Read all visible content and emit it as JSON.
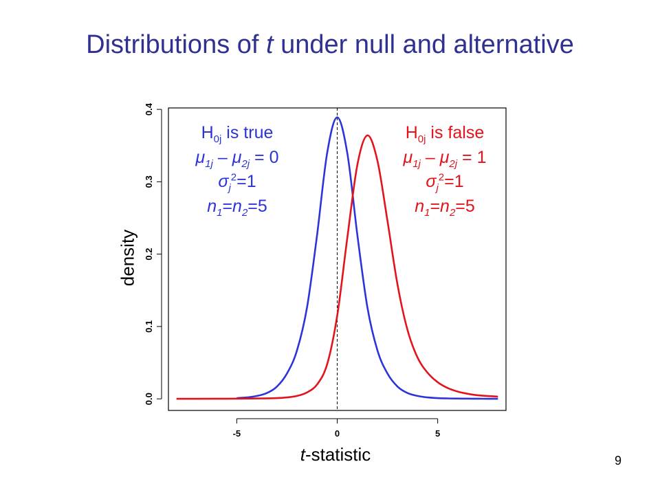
{
  "slide": {
    "title_pre": "Distributions of ",
    "title_var": "t",
    "title_post": " under null and alternative",
    "page_number": "9"
  },
  "colors": {
    "title": "#2e3192",
    "null_curve": "#2b34d9",
    "alt_curve": "#e3131b",
    "axis": "#000000"
  },
  "annotations": {
    "null": {
      "line1_pre": "H",
      "line1_sub": "0j",
      "line1_post": " is true",
      "line2": {
        "a": "μ",
        "a_sub": "1j",
        "mid": " – ",
        "b": "μ",
        "b_sub": "2j",
        "tail": " = 0"
      },
      "line3": {
        "s": "σ",
        "s_sub": "j",
        "s_sup": "2",
        "tail": "=1"
      },
      "line4": {
        "a": "n",
        "a_sub": "1",
        "mid": "=",
        "b": "n",
        "b_sub": "2",
        "tail": "=5"
      }
    },
    "alt": {
      "line1_pre": "H",
      "line1_sub": "0j",
      "line1_post": " is false",
      "line2": {
        "a": "μ",
        "a_sub": "1j",
        "mid": " – ",
        "b": "μ",
        "b_sub": "2j",
        "tail": " = 1"
      },
      "line3": {
        "s": "σ",
        "s_sub": "j",
        "s_sup": "2",
        "tail": "=1"
      },
      "line4": {
        "a": "n",
        "a_sub": "1",
        "mid": "=",
        "b": "n",
        "b_sub": "2",
        "tail": "=5"
      }
    }
  },
  "chart_data": {
    "type": "line",
    "xlabel_var": "t",
    "xlabel_post": "-statistic",
    "ylabel": "density",
    "xlim": [
      -8.4,
      8.4
    ],
    "ylim": [
      -0.016,
      0.402
    ],
    "xticks": [
      -5,
      0,
      5
    ],
    "xtick_labels": [
      "-5",
      "0",
      "5"
    ],
    "yticks": [
      0.0,
      0.1,
      0.2,
      0.3,
      0.4
    ],
    "ytick_labels": [
      "0.0",
      "0.1",
      "0.2",
      "0.3",
      "0.4"
    ],
    "grid": false,
    "reference_line": {
      "x": 0,
      "style": "dashed"
    },
    "series": [
      {
        "x": [
          -5,
          -4.5,
          -4,
          -3.5,
          -3,
          -2.5,
          -2,
          -1.5,
          -1,
          -0.5,
          0,
          0.5,
          1,
          1.5,
          2,
          2.5,
          3,
          3.5,
          4,
          4.5,
          5,
          5.5,
          6,
          6.5,
          7,
          7.5,
          8
        ],
        "y": [
          0.001,
          0.002,
          0.004,
          0.008,
          0.017,
          0.035,
          0.067,
          0.127,
          0.227,
          0.34,
          0.389,
          0.34,
          0.227,
          0.127,
          0.067,
          0.035,
          0.017,
          0.008,
          0.004,
          0.002,
          0.001,
          0.0006,
          0.0004,
          0.0003,
          0.0002,
          0.0001,
          0.0001
        ]
      },
      {
        "x": [
          -8,
          -7,
          -6,
          -5,
          -4,
          -3,
          -2.5,
          -2,
          -1.5,
          -1,
          -0.5,
          0,
          0.5,
          1,
          1.5,
          2,
          2.5,
          3,
          3.5,
          4,
          4.5,
          5,
          5.5,
          6,
          6.5,
          7,
          8
        ],
        "y": [
          0.0001,
          0.0001,
          0.0002,
          0.0003,
          0.0005,
          0.001,
          0.002,
          0.004,
          0.009,
          0.02,
          0.048,
          0.115,
          0.222,
          0.323,
          0.364,
          0.329,
          0.246,
          0.158,
          0.095,
          0.057,
          0.036,
          0.023,
          0.015,
          0.01,
          0.007,
          0.005,
          0.003
        ]
      }
    ]
  }
}
